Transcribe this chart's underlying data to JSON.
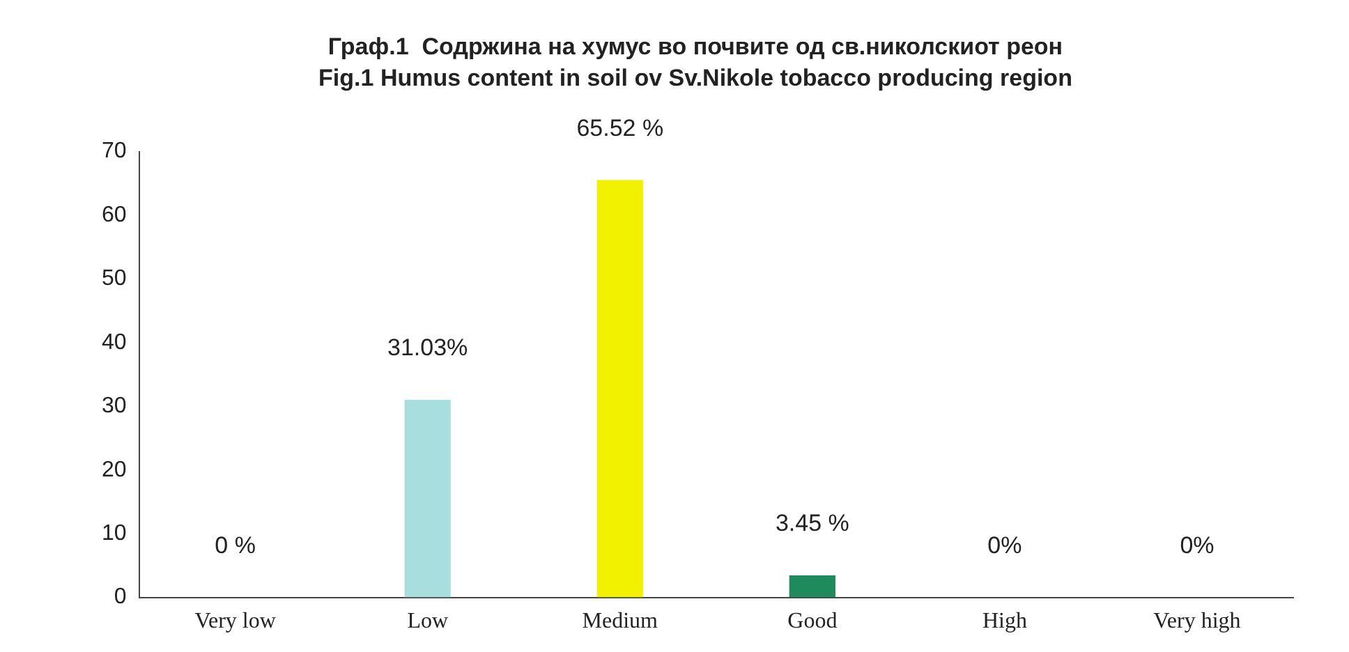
{
  "chart_data": {
    "type": "bar",
    "title": "Граф.1  Содржина на хумус во почвите од св.николскиот реон",
    "subtitle": "Fig.1 Humus content in soil ov Sv.Nikole tobacco producing region",
    "categories": [
      "Very low",
      "Low",
      "Medium",
      "Good",
      "High",
      "Very high"
    ],
    "values": [
      0,
      31.03,
      65.52,
      3.45,
      0,
      0
    ],
    "colors": [
      "#2a3fa0",
      "#a8dede",
      "#f2f200",
      "#1f8a5c",
      "#b273c4",
      "#e02424"
    ],
    "value_labels": [
      "0 %",
      "31.03%",
      "65.52 %",
      "3.45 %",
      "0%",
      "0%"
    ],
    "ylim": [
      0,
      70
    ],
    "yticks": [
      0,
      10,
      20,
      30,
      40,
      50,
      60,
      70
    ],
    "grid": false,
    "legend": false
  }
}
